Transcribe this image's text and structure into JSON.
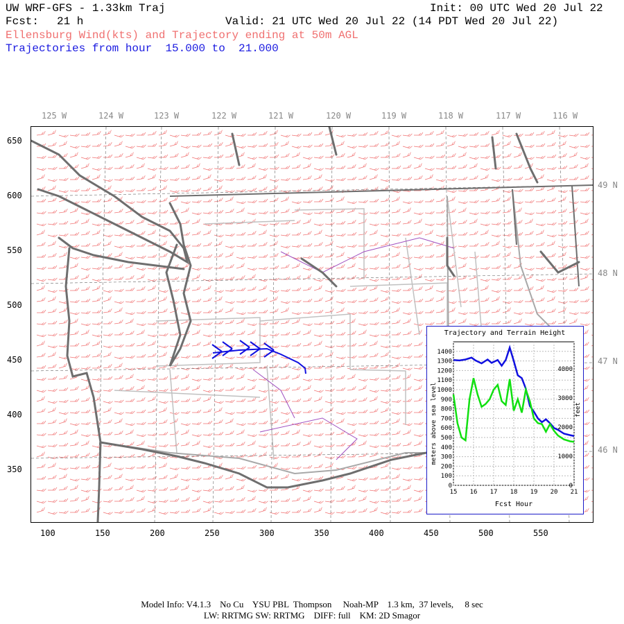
{
  "header": {
    "title_left": "UW WRF-GFS - 1.33km Traj",
    "init": "Init: 00 UTC Wed 20 Jul 22",
    "fcst_label": "Fcst:",
    "fcst_value": "21 h",
    "valid": "Valid: 21 UTC Wed 20 Jul 22 (14 PDT Wed 20 Jul 22)",
    "subtitle_red": "Ellensburg Wind(kts) and Trajectory ending at 50m AGL",
    "subtitle_blue": "Trajectories from hour  15.000 to  21.000"
  },
  "map": {
    "top_lon_labels": [
      "125 W",
      "124 W",
      "123 W",
      "122 W",
      "121 W",
      "120 W",
      "119 W",
      "118 W",
      "117 W",
      "116 W"
    ],
    "right_lat_labels": [
      "49 N",
      "48 N",
      "47 N",
      "46 N"
    ],
    "x_ticks": [
      "100",
      "150",
      "200",
      "250",
      "300",
      "350",
      "400",
      "450",
      "500",
      "550"
    ],
    "y_ticks": [
      "650",
      "600",
      "550",
      "500",
      "450",
      "400",
      "350"
    ],
    "colors": {
      "coast": "#6e6e6e",
      "state": "#a8a8a8",
      "county": "#c0c0c0",
      "wind_barb": "#f07070",
      "river": "#a050c0",
      "trajectory": "#1010e0"
    }
  },
  "inset": {
    "title": "Trajectory and Terrain Height",
    "y_left_label": "meters above sea level",
    "y_right_label": "feet",
    "x_label": "Fcst Hour",
    "y_left_ticks": [
      "1400",
      "1300",
      "1200",
      "1100",
      "1000",
      "900",
      "800",
      "700",
      "600",
      "500",
      "400",
      "300",
      "200",
      "100",
      "0"
    ],
    "y_right_ticks": [
      "4000",
      "3000",
      "2000",
      "1000",
      "0"
    ],
    "x_ticks": [
      "15",
      "16",
      "17",
      "18",
      "19",
      "20",
      "21"
    ]
  },
  "chart_data": {
    "type": "line",
    "title": "Trajectory and Terrain Height",
    "xlabel": "Fcst Hour",
    "ylabel": "meters above sea level",
    "xlim": [
      15,
      21
    ],
    "ylim": [
      0,
      1500
    ],
    "series": [
      {
        "color": "#1010e0",
        "x": [
          15.0,
          15.3,
          15.6,
          15.9,
          16.1,
          16.4,
          16.7,
          16.9,
          17.2,
          17.4,
          17.6,
          17.8,
          18.0,
          18.2,
          18.4,
          18.6,
          18.8,
          19.0,
          19.2,
          19.4,
          19.6,
          19.8,
          20.0,
          20.2,
          20.5,
          20.8,
          21.0
        ],
        "values": [
          1310,
          1305,
          1315,
          1335,
          1305,
          1275,
          1315,
          1280,
          1310,
          1250,
          1310,
          1440,
          1300,
          1150,
          1120,
          1010,
          830,
          770,
          700,
          660,
          690,
          650,
          600,
          580,
          540,
          525,
          515
        ]
      },
      {
        "color": "#10e010",
        "x": [
          15.0,
          15.2,
          15.4,
          15.6,
          15.8,
          16.0,
          16.2,
          16.4,
          16.6,
          16.8,
          17.0,
          17.2,
          17.4,
          17.6,
          17.8,
          18.0,
          18.2,
          18.4,
          18.6,
          18.8,
          19.0,
          19.2,
          19.4,
          19.6,
          19.8,
          20.0,
          20.2,
          20.5,
          20.8,
          21.0
        ],
        "values": [
          950,
          650,
          500,
          470,
          900,
          1120,
          950,
          820,
          850,
          900,
          1000,
          1050,
          880,
          840,
          1110,
          780,
          900,
          760,
          1000,
          880,
          700,
          650,
          640,
          560,
          640,
          570,
          520,
          480,
          460,
          455
        ]
      }
    ]
  },
  "footer": {
    "line1": "Model Info: V4.1.3    No Cu    YSU PBL  Thompson     Noah-MP    1.3 km,  37 levels,     8 sec",
    "line2": "LW: RRTMG SW: RRTMG    DIFF: full    KM: 2D Smagor"
  }
}
